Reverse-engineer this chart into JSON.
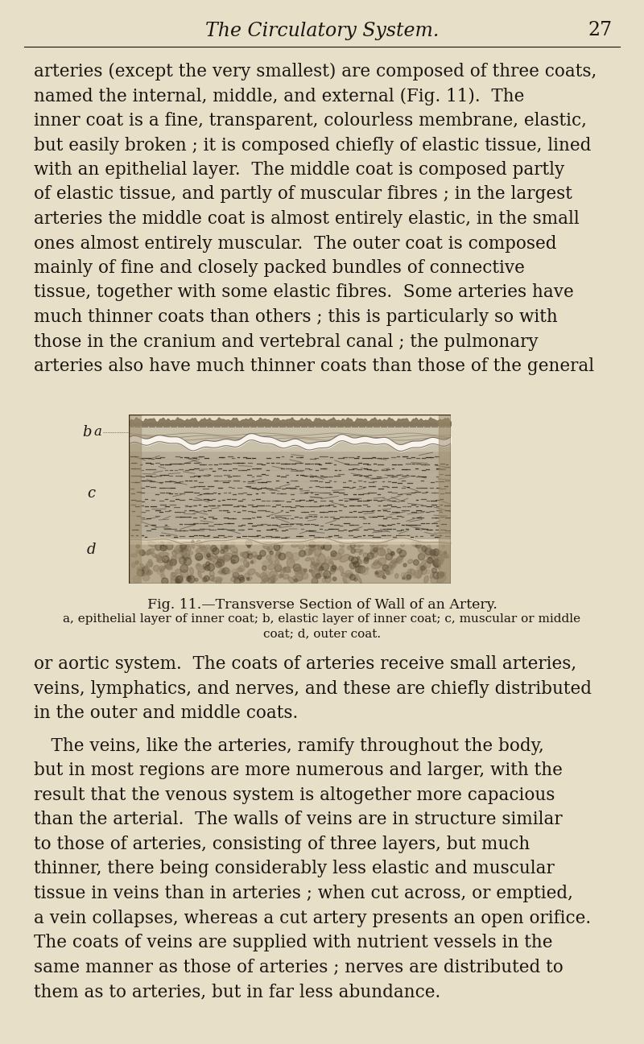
{
  "bg_color": "#e8dfc8",
  "text_color": "#1a1510",
  "header_text": "The Circulatory System.",
  "page_number": "27",
  "fig_caption_line1": "Fig. 11.—Transverse Section of Wall of an Artery.",
  "fig_caption_line2": "a, epithelial layer of inner coat; b, elastic layer of inner coat; c, muscular or middle",
  "fig_caption_line3": "coat; d, outer coat.",
  "para1_lines": [
    "arteries (except the very smallest) are composed of three coats,",
    "named the internal, middle, and external (Fig. 11).  The",
    "inner coat is a fine, transparent, colourless membrane, elastic,",
    "but easily broken ; it is composed chiefly of elastic tissue, lined",
    "with an epithelial layer.  The middle coat is composed partly",
    "of elastic tissue, and partly of muscular fibres ; in the largest",
    "arteries the middle coat is almost entirely elastic, in the small",
    "ones almost entirely muscular.  The outer coat is composed",
    "mainly of fine and closely packed bundles of connective",
    "tissue, together with some elastic fibres.  Some arteries have",
    "much thinner coats than others ; this is particularly so with",
    "those in the cranium and vertebral canal ; the pulmonary",
    "arteries also have much thinner coats than those of the general"
  ],
  "para2_lines": [
    "or aortic system.  The coats of arteries receive small arteries,",
    "veins, lymphatics, and nerves, and these are chiefly distributed",
    "in the outer and middle coats."
  ],
  "para3_lines": [
    " The veins, like the arteries, ramify throughout the body,",
    "but in most regions are more numerous and larger, with the",
    "result that the venous system is altogether more capacious",
    "than the arterial.  The walls of veins are in structure similar",
    "to those of arteries, consisting of three layers, but much",
    "thinner, there being considerably less elastic and muscular",
    "tissue in veins than in arteries ; when cut across, or emptied,",
    "a vein collapses, whereas a cut artery presents an open orifice.",
    "The coats of veins are supplied with nutrient vessels in the",
    "same manner as those of arteries ; nerves are distributed to",
    "them as to arteries, but in far less abundance."
  ]
}
